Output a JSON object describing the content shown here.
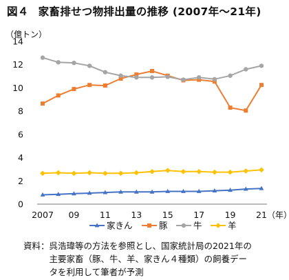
{
  "title": {
    "figure": "図４",
    "text": "家畜排せつ物排出量の推移 (2007年〜21年)"
  },
  "unit_label": "（億トン）",
  "note": {
    "label": "資料：",
    "lines": [
      "呉浩瑋等の方法を参照とし、国家統計局の2021年の",
      "主要家畜（豚、牛、羊、家きん４種類）の飼養デー",
      "タを利用して筆者が予測"
    ]
  },
  "chart_data": {
    "type": "line",
    "x": [
      2007,
      2008,
      2009,
      2010,
      2011,
      2012,
      2013,
      2014,
      2015,
      2016,
      2017,
      2018,
      2019,
      2020,
      2021
    ],
    "x_tick_labels": [
      "2007",
      "09",
      "11",
      "13",
      "15",
      "17",
      "19",
      "21"
    ],
    "x_tick_values": [
      2007,
      2009,
      2011,
      2013,
      2015,
      2017,
      2019,
      2021
    ],
    "x_unit_label": "（年）",
    "ylim": [
      0,
      14
    ],
    "y_ticks": [
      0,
      2,
      4,
      6,
      8,
      10,
      12,
      14
    ],
    "legend_position": "bottom",
    "series": [
      {
        "name": "家きん",
        "color": "#4472C4",
        "marker": "triangle",
        "values": [
          0.8,
          0.85,
          0.9,
          0.95,
          1.0,
          1.05,
          1.05,
          1.05,
          1.1,
          1.1,
          1.1,
          1.15,
          1.2,
          1.3,
          1.35
        ]
      },
      {
        "name": "豚",
        "color": "#ED7D31",
        "marker": "square",
        "values": [
          8.65,
          9.35,
          9.9,
          10.25,
          10.2,
          10.8,
          11.15,
          11.45,
          11.05,
          10.65,
          10.7,
          10.55,
          8.3,
          8.05,
          10.25
        ]
      },
      {
        "name": "牛",
        "color": "#A5A5A5",
        "marker": "circle",
        "values": [
          12.6,
          12.2,
          12.15,
          11.9,
          11.35,
          11.05,
          10.9,
          10.9,
          10.95,
          10.7,
          10.9,
          10.75,
          11.05,
          11.6,
          11.9
        ]
      },
      {
        "name": "羊",
        "color": "#FFC000",
        "marker": "diamond",
        "values": [
          2.65,
          2.7,
          2.65,
          2.7,
          2.65,
          2.65,
          2.7,
          2.8,
          2.9,
          2.8,
          2.8,
          2.75,
          2.75,
          2.85,
          2.95
        ]
      }
    ]
  }
}
